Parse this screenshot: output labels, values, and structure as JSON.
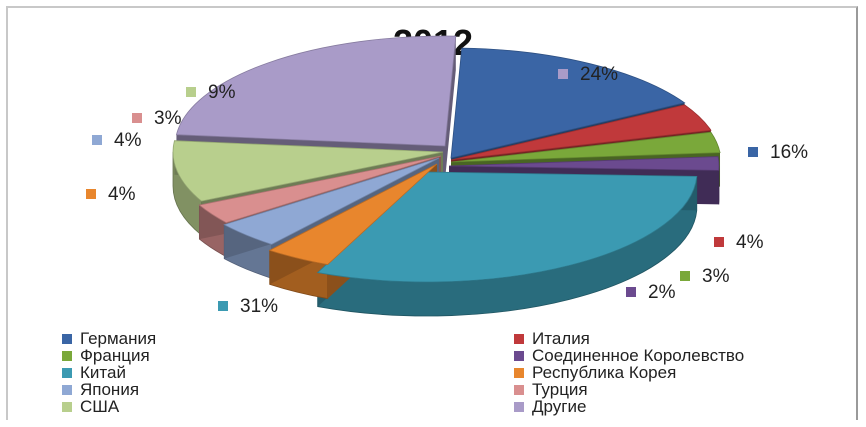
{
  "chart_data": {
    "type": "pie",
    "title": "2012",
    "series": [
      {
        "name": "Германия",
        "value": 16,
        "label": "16%",
        "color": "#3a65a5"
      },
      {
        "name": "Италия",
        "value": 4,
        "label": "4%",
        "color": "#c0393b"
      },
      {
        "name": "Франция",
        "value": 3,
        "label": "3%",
        "color": "#7aa83a"
      },
      {
        "name": "Соединенное Королевство",
        "value": 2,
        "label": "2%",
        "color": "#6b4a8f"
      },
      {
        "name": "Китай",
        "value": 31,
        "label": "31%",
        "color": "#3b9ab2"
      },
      {
        "name": "Республика Корея",
        "value": 4,
        "label": "4%",
        "color": "#e8862d"
      },
      {
        "name": "Япония",
        "value": 4,
        "label": "4%",
        "color": "#8fa8d4"
      },
      {
        "name": "Турция",
        "value": 3,
        "label": "3%",
        "color": "#d98f8f"
      },
      {
        "name": "США",
        "value": 9,
        "label": "9%",
        "color": "#b8cf8d"
      },
      {
        "name": "Другие",
        "value": 24,
        "label": "24%",
        "color": "#a99bc8"
      }
    ],
    "legend_placement": "bottom",
    "style": "3d-exploded"
  }
}
